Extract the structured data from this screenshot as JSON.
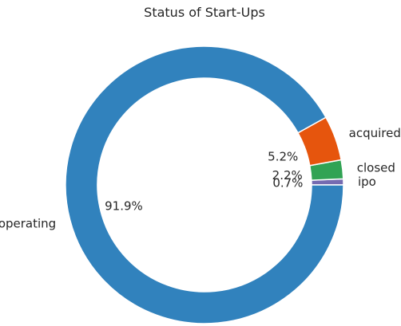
{
  "chart_data": {
    "type": "pie",
    "title": "Status of Start-Ups",
    "donut": true,
    "start_angle_deg": 0,
    "direction": "counterclockwise",
    "slices": [
      {
        "label": "ipo",
        "value": 0.7,
        "pct_label": "0.7%",
        "color": "#756bb1"
      },
      {
        "label": "closed",
        "value": 2.2,
        "pct_label": "2.2%",
        "color": "#31a354"
      },
      {
        "label": "acquired",
        "value": 5.2,
        "pct_label": "5.2%",
        "color": "#e6550d"
      },
      {
        "label": "operating",
        "value": 91.9,
        "pct_label": "91.9%",
        "color": "#3182bd"
      }
    ]
  }
}
